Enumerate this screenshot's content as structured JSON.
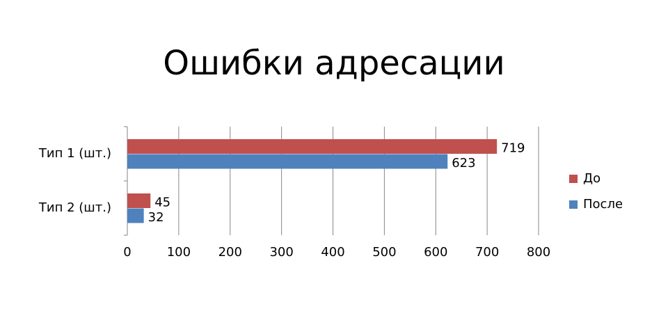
{
  "chart_data": {
    "type": "bar",
    "orientation": "horizontal",
    "title": "Ошибки адресации",
    "categories": [
      "Тип 1 (шт.)",
      "Тип 2 (шт.)"
    ],
    "series": [
      {
        "name": "До",
        "color": "#c0504d",
        "values": [
          719,
          45
        ]
      },
      {
        "name": "После",
        "color": "#4f81bd",
        "values": [
          623,
          32
        ]
      }
    ],
    "xlim": [
      0,
      800
    ],
    "xticks": [
      0,
      100,
      200,
      300,
      400,
      500,
      600,
      700,
      800
    ],
    "grid": true,
    "legend": "right"
  }
}
